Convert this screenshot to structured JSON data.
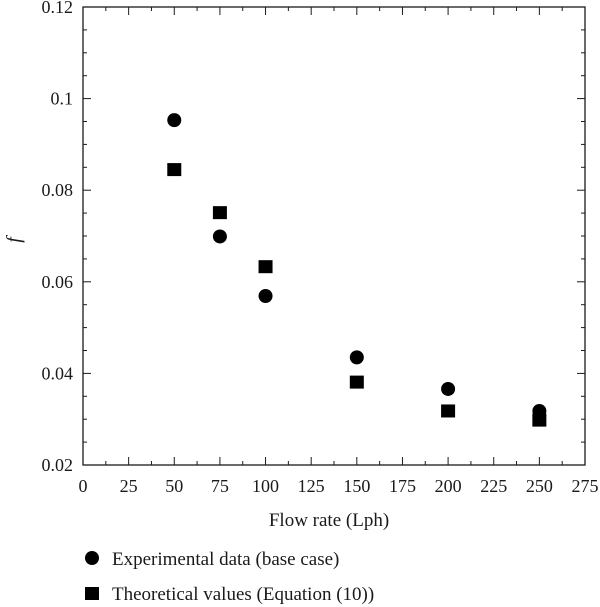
{
  "chart_data": {
    "type": "scatter",
    "xlabel": "Flow rate (Lph)",
    "ylabel": "f",
    "xlim": [
      0,
      275
    ],
    "ylim": [
      0.02,
      0.12
    ],
    "x_ticks": [
      0,
      25,
      50,
      75,
      100,
      125,
      150,
      175,
      200,
      225,
      250,
      275
    ],
    "x_tick_labels": [
      "0",
      "25",
      "50",
      "75",
      "100",
      "125",
      "150",
      "175",
      "200",
      "225",
      "250",
      "275"
    ],
    "y_ticks": [
      0.02,
      0.04,
      0.06,
      0.08,
      0.1,
      0.12
    ],
    "y_tick_labels": [
      "0.02",
      "0.04",
      "0.06",
      "0.08",
      "0.1",
      "0.12"
    ],
    "grid": false,
    "legend_position": "bottom-left, below plot",
    "series": [
      {
        "name": "Experimental data (base case)",
        "marker": "circle",
        "color": "#000000",
        "points": [
          {
            "x": 50,
            "y": 0.0953
          },
          {
            "x": 75,
            "y": 0.0699
          },
          {
            "x": 100,
            "y": 0.0569
          },
          {
            "x": 150,
            "y": 0.0435
          },
          {
            "x": 200,
            "y": 0.0366
          },
          {
            "x": 250,
            "y": 0.0318
          }
        ]
      },
      {
        "name": "Theoretical values (Equation (10))",
        "marker": "square",
        "color": "#000000",
        "points": [
          {
            "x": 50,
            "y": 0.0845
          },
          {
            "x": 75,
            "y": 0.0751
          },
          {
            "x": 100,
            "y": 0.0633
          },
          {
            "x": 150,
            "y": 0.0381
          },
          {
            "x": 200,
            "y": 0.0318
          },
          {
            "x": 250,
            "y": 0.0298
          }
        ]
      }
    ]
  }
}
